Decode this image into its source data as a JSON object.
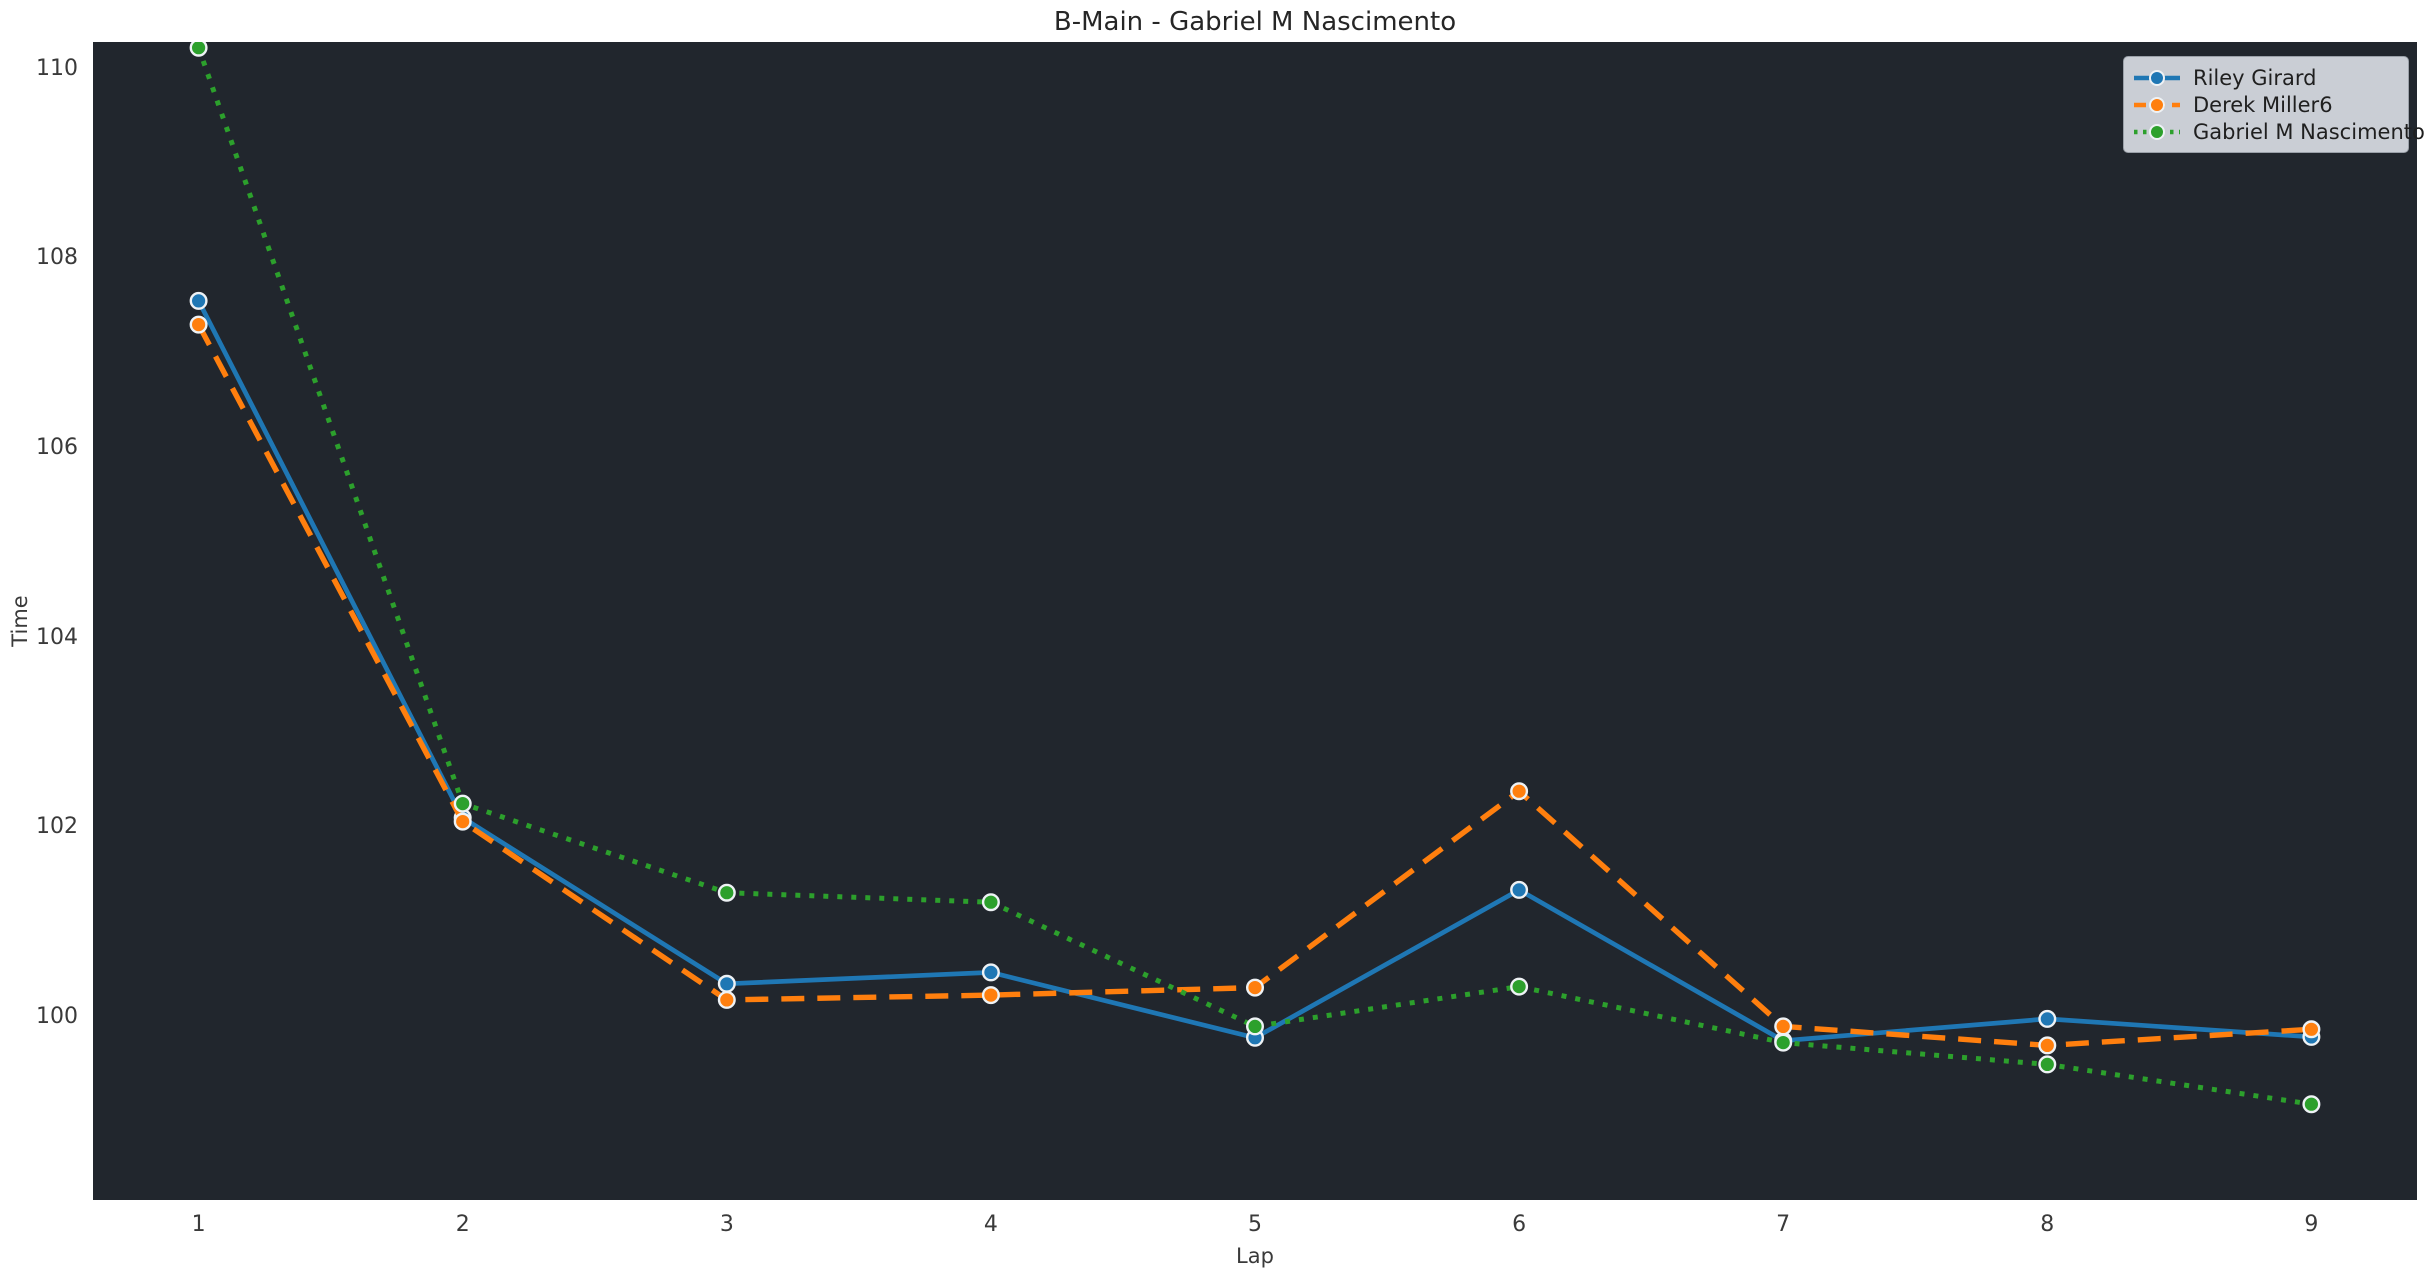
{
  "chart_data": {
    "type": "line",
    "title": "B-Main - Gabriel M Nascimento",
    "xlabel": "Lap",
    "ylabel": "Time",
    "x": [
      1,
      2,
      3,
      4,
      5,
      6,
      7,
      8,
      9
    ],
    "xticks": [
      "1",
      "2",
      "3",
      "4",
      "5",
      "6",
      "7",
      "8",
      "9"
    ],
    "yticks": [
      100,
      102,
      104,
      106,
      108,
      110
    ],
    "xlim": [
      0.6,
      9.4
    ],
    "ylim": [
      98.07,
      110.28
    ],
    "grid": false,
    "legend_position": "upper-right",
    "series": [
      {
        "name": "Riley Girard",
        "color": "#1f77b4",
        "line_style": "solid",
        "marker": "circle",
        "values": [
          107.55,
          102.1,
          100.35,
          100.47,
          99.78,
          101.34,
          99.75,
          99.98,
          99.79
        ]
      },
      {
        "name": "Derek Miller6",
        "color": "#ff7f0e",
        "line_style": "dashed",
        "marker": "circle",
        "values": [
          107.3,
          102.06,
          100.18,
          100.23,
          100.31,
          102.38,
          99.9,
          99.7,
          99.87
        ]
      },
      {
        "name": "Gabriel M Nascimento",
        "color": "#2ca02c",
        "line_style": "dotted",
        "marker": "circle",
        "values": [
          110.22,
          102.25,
          101.31,
          101.21,
          99.9,
          100.32,
          99.73,
          99.5,
          99.08
        ]
      }
    ],
    "colors": {
      "figure_bg": "#ffffff",
      "axes_bg": "#21262d",
      "title_text": "#262626",
      "tick_text": "#3a3a3a",
      "legend_bg": "#caced5",
      "legend_border": "#9aa0a8",
      "legend_text": "#1f1f1f",
      "marker_edge": "#eef2f5"
    }
  }
}
